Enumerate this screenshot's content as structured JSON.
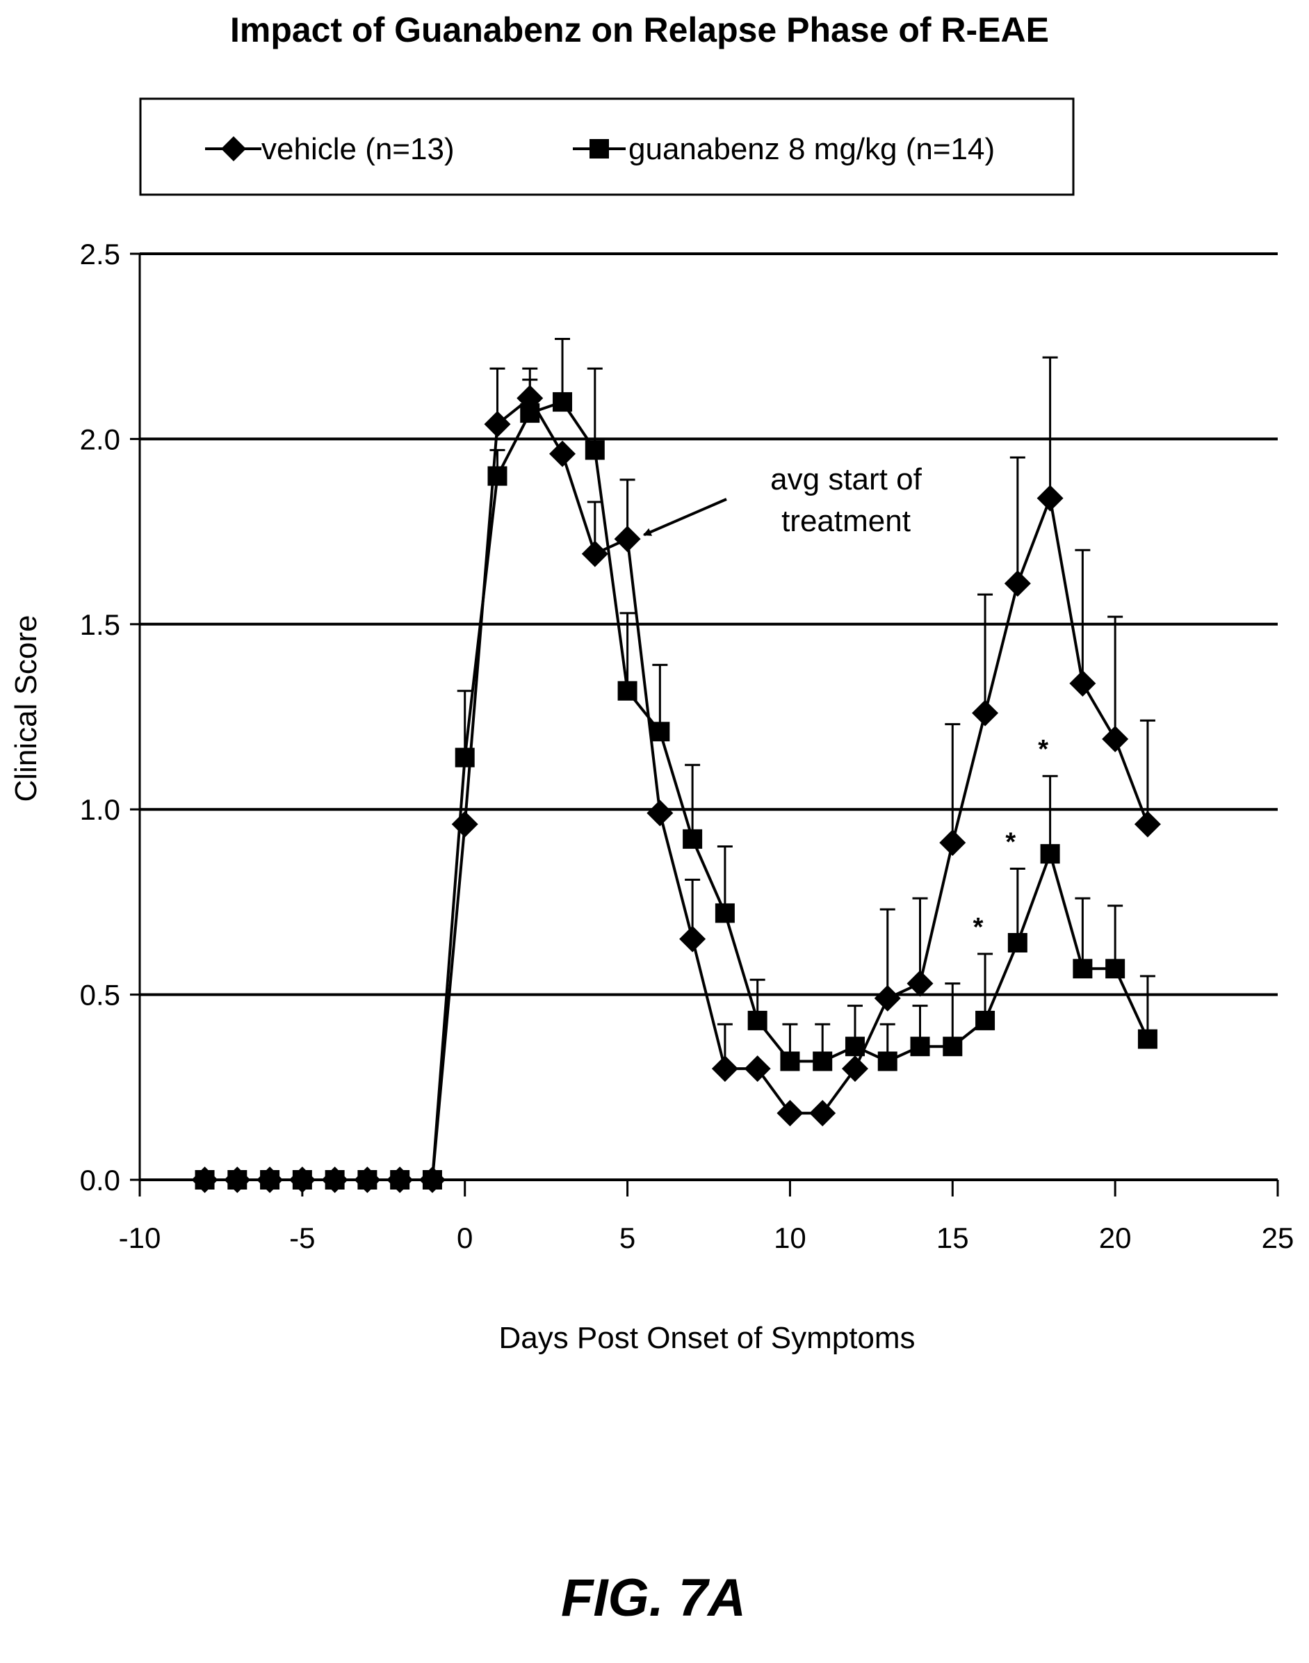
{
  "chart_data": {
    "type": "line",
    "title": "Impact of Guanabenz on Relapse Phase of R-EAE",
    "xlabel": "Days Post Onset of Symptoms",
    "ylabel": "Clinical Score",
    "xlim": [
      -10,
      25
    ],
    "ylim": [
      0,
      2.5
    ],
    "x_ticks": [
      "-10",
      "-5",
      "0",
      "5",
      "10",
      "15",
      "20",
      "25"
    ],
    "y_ticks": [
      "0.0",
      "0.5",
      "1.0",
      "1.5",
      "2.0",
      "2.5"
    ],
    "grid": "horizontal",
    "legend_position": "top",
    "series": [
      {
        "name": "vehicle (n=13)",
        "marker": "diamond",
        "color": "#000000",
        "x": [
          -8,
          -7,
          -6,
          -5,
          -4,
          -3,
          -2,
          -1,
          0,
          1,
          2,
          3,
          4,
          5,
          6,
          7,
          8,
          9,
          10,
          11,
          12,
          13,
          14,
          15,
          16,
          17,
          18,
          19,
          20,
          21
        ],
        "y": [
          0,
          0,
          0,
          0,
          0,
          0,
          0,
          0,
          0.96,
          2.04,
          2.11,
          1.96,
          1.69,
          1.73,
          0.99,
          0.65,
          0.3,
          0.3,
          0.18,
          0.18,
          0.3,
          0.49,
          0.53,
          0.91,
          1.26,
          1.61,
          1.84,
          1.34,
          1.19,
          0.96
        ],
        "error": [
          0,
          0,
          0,
          0,
          0,
          0,
          0,
          0,
          0,
          0.15,
          0.08,
          0,
          0.14,
          0.16,
          0,
          0.16,
          0.12,
          0,
          0,
          0,
          0,
          0.24,
          0.23,
          0.32,
          0.32,
          0.34,
          0.38,
          0.36,
          0.33,
          0.28
        ]
      },
      {
        "name": "guanabenz 8 mg/kg (n=14)",
        "marker": "square",
        "color": "#000000",
        "x": [
          -8,
          -7,
          -6,
          -5,
          -4,
          -3,
          -2,
          -1,
          0,
          1,
          2,
          3,
          4,
          5,
          6,
          7,
          8,
          9,
          10,
          11,
          12,
          13,
          14,
          15,
          16,
          17,
          18,
          19,
          20,
          21
        ],
        "y": [
          0,
          0,
          0,
          0,
          0,
          0,
          0,
          0,
          1.14,
          1.9,
          2.07,
          2.1,
          1.97,
          1.32,
          1.21,
          0.92,
          0.72,
          0.43,
          0.32,
          0.32,
          0.36,
          0.32,
          0.36,
          0.36,
          0.43,
          0.64,
          0.88,
          0.57,
          0.57,
          0.38
        ],
        "error": [
          0,
          0,
          0,
          0,
          0,
          0,
          0,
          0,
          0.18,
          0.07,
          0.09,
          0.17,
          0.22,
          0.21,
          0.18,
          0.2,
          0.18,
          0.11,
          0.1,
          0.1,
          0.11,
          0.1,
          0.11,
          0.17,
          0.18,
          0.2,
          0.21,
          0.19,
          0.17,
          0.17
        ]
      }
    ],
    "annotations": [
      {
        "text_lines": [
          "avg start of",
          "treatment"
        ],
        "arrow_to": {
          "x": 5,
          "y": 1.73
        }
      },
      {
        "text": "*",
        "x": 16,
        "y": 0.61
      },
      {
        "text": "*",
        "x": 17,
        "y": 0.84
      },
      {
        "text": "*",
        "x": 18,
        "y": 1.09
      }
    ]
  },
  "figure": {
    "caption": "FIG. 7A"
  }
}
